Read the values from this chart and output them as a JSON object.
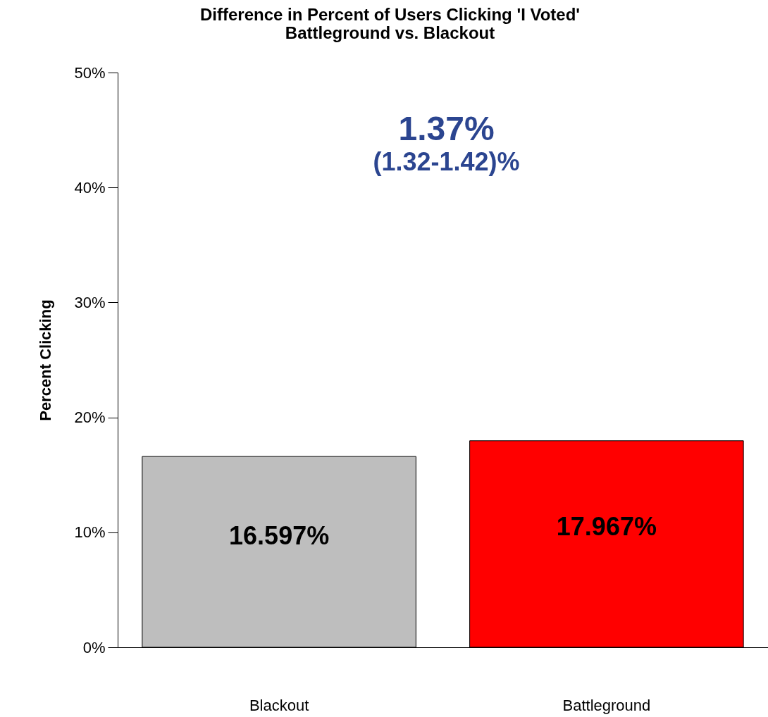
{
  "chart_data": {
    "type": "bar",
    "title": "Difference in Percent of Users Clicking 'I Voted'",
    "subtitle": "Battleground vs. Blackout",
    "ylabel": "Percent Clicking",
    "categories": [
      "Blackout",
      "Battleground"
    ],
    "values": [
      16.597,
      17.967
    ],
    "colors": [
      "#bebebe",
      "#ff0000"
    ],
    "value_labels": [
      "16.597%",
      "17.967%"
    ],
    "ylim": [
      0,
      50
    ],
    "yticks": [
      {
        "value": 0,
        "label": "0%"
      },
      {
        "value": 10,
        "label": "10%"
      },
      {
        "value": 20,
        "label": "20%"
      },
      {
        "value": 30,
        "label": "30%"
      },
      {
        "value": 40,
        "label": "40%"
      },
      {
        "value": 50,
        "label": "50%"
      }
    ],
    "annotations": [
      "1.37%",
      "(1.32-1.42)%"
    ],
    "grid": false
  }
}
